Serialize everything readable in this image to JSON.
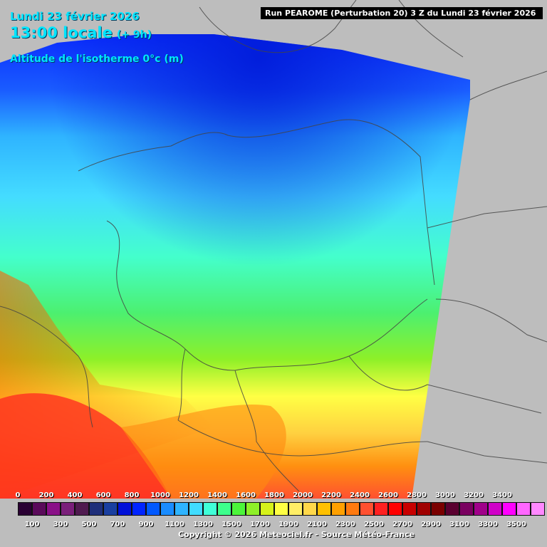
{
  "header": {
    "date": "Lundi 23 février 2026",
    "time": "13:00 locale",
    "offset": "(+ 9h)",
    "parameter": "Altitude de l'isotherme 0°c (m)",
    "run": "Run PEAROME (Perturbation 20) 3 Z du Lundi 23 février 2026"
  },
  "legend": {
    "top_labels": [
      "0",
      "200",
      "400",
      "600",
      "800",
      "1000",
      "1200",
      "1400",
      "1600",
      "1800",
      "2000",
      "2200",
      "2400",
      "2600",
      "2800",
      "3000",
      "3200",
      "3400"
    ],
    "bottom_labels": [
      "100",
      "300",
      "500",
      "700",
      "900",
      "1100",
      "1300",
      "1500",
      "1700",
      "1900",
      "2100",
      "2300",
      "2500",
      "2700",
      "2900",
      "3100",
      "3300",
      "3500"
    ],
    "colors": [
      "#2a0033",
      "#5a0a5a",
      "#8a1088",
      "#7a1f7a",
      "#4f1a4f",
      "#1f2f7a",
      "#1a3fa0",
      "#0010d8",
      "#0024ff",
      "#0058ff",
      "#1a8cff",
      "#2fb4ff",
      "#40dcff",
      "#40ffd8",
      "#3dff8c",
      "#4cf53a",
      "#8ef028",
      "#d6f21a",
      "#ffff44",
      "#ffee66",
      "#ffd84a",
      "#ffc000",
      "#ffa000",
      "#ff7a10",
      "#ff5030",
      "#ff2020",
      "#ff0000",
      "#c80000",
      "#a00000",
      "#7a0000",
      "#5a0030",
      "#7a0060",
      "#a0008a",
      "#d000c8",
      "#ff00ff",
      "#ff66ff",
      "#ff88ff"
    ]
  },
  "copyright": "Copyright © 2026 Meteociel.fr - Source Météo-France"
}
